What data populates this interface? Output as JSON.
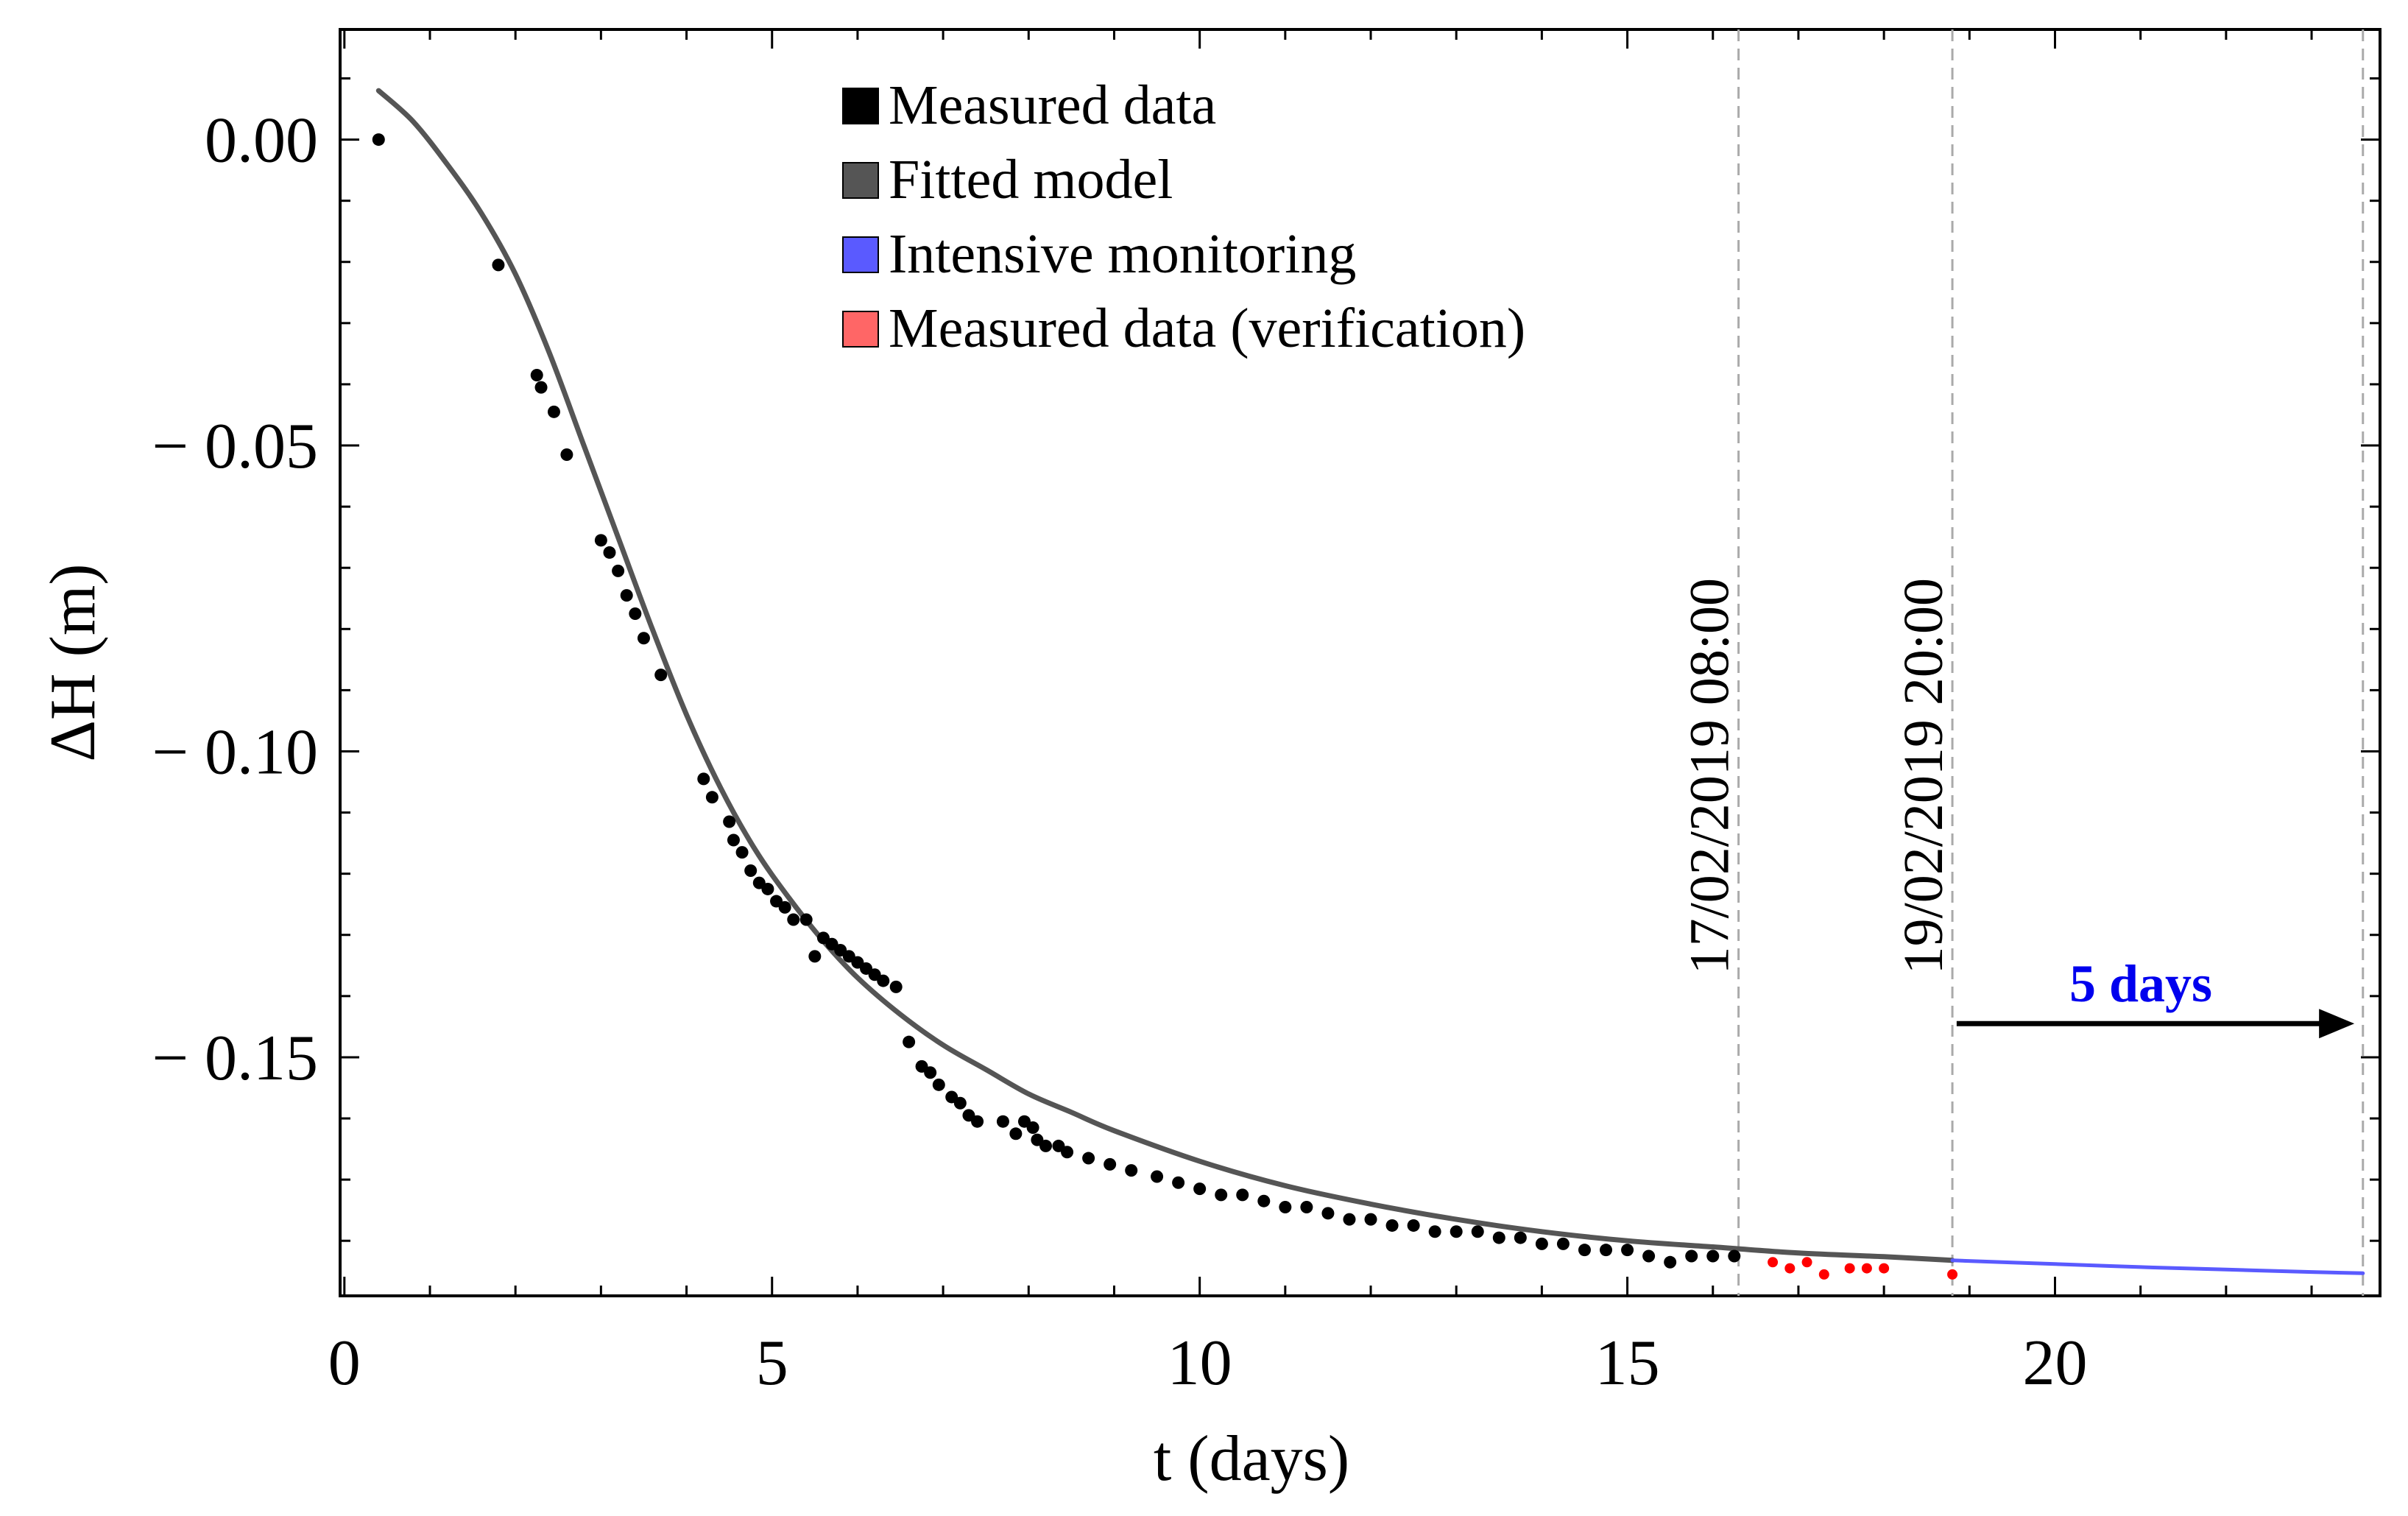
{
  "chart_data": {
    "type": "scatter",
    "xlabel": "t (days)",
    "ylabel": "ΔH (m)",
    "xlim": [
      -0.05,
      23.8
    ],
    "ylim": [
      -0.189,
      0.018
    ],
    "x_ticks": [
      0,
      5,
      10,
      15,
      20
    ],
    "x_tick_labels": [
      "0",
      "5",
      "10",
      "15",
      "20"
    ],
    "x_minor_step": 1,
    "y_ticks": [
      0.0,
      -0.05,
      -0.1,
      -0.15
    ],
    "y_tick_labels": [
      "0.00",
      "− 0.05",
      "− 0.10",
      "− 0.15"
    ],
    "y_minor_step": 0.01,
    "colors": {
      "measured": "#000000",
      "model": "#555555",
      "intensive": "#5a5aff",
      "verification": "#ff0000",
      "verification_legend": "#ff6666",
      "vline": "#aaaaaa",
      "arrow": "#000000",
      "arrow_label": "#0000ee"
    },
    "legend": [
      {
        "label": "Measured data",
        "color": "#000000"
      },
      {
        "label": "Fitted model",
        "color": "#555555"
      },
      {
        "label": "Intensive monitoring",
        "color": "#5a5aff"
      },
      {
        "label": "Measured data (verification)",
        "color": "#ff6666"
      }
    ],
    "vertical_lines": [
      {
        "x": 16.3,
        "label": "17/02/2019 08:00"
      },
      {
        "x": 18.8,
        "label": "19/02/2019 20:00"
      },
      {
        "x": 23.6,
        "label": ""
      }
    ],
    "arrow": {
      "x_start": 18.85,
      "x_end": 23.5,
      "y": -0.1445,
      "label": "5 days"
    },
    "series": [
      {
        "name": "Measured data",
        "kind": "scatter",
        "x": [
          0.4,
          1.8,
          2.25,
          2.3,
          2.45,
          2.6,
          3.0,
          3.1,
          3.2,
          3.3,
          3.4,
          3.5,
          3.7,
          4.2,
          4.3,
          4.5,
          4.55,
          4.65,
          4.75,
          4.85,
          4.95,
          5.05,
          5.15,
          5.25,
          5.4,
          5.5,
          5.6,
          5.7,
          5.8,
          5.9,
          6.0,
          6.1,
          6.2,
          6.3,
          6.45,
          6.6,
          6.75,
          6.85,
          6.95,
          7.1,
          7.2,
          7.3,
          7.4,
          7.7,
          7.85,
          7.95,
          8.05,
          8.1,
          8.2,
          8.35,
          8.45,
          8.7,
          8.95,
          9.2,
          9.5,
          9.75,
          10.0,
          10.25,
          10.5,
          10.75,
          11.0,
          11.25,
          11.5,
          11.75,
          12.0,
          12.25,
          12.5,
          12.75,
          13.0,
          13.25,
          13.5,
          13.75,
          14.0,
          14.25,
          14.5,
          14.75,
          15.0,
          15.25,
          15.5,
          15.75,
          16.0,
          16.25
        ],
        "y": [
          0.0,
          -0.0205,
          -0.0385,
          -0.0405,
          -0.0445,
          -0.0515,
          -0.0655,
          -0.0675,
          -0.0705,
          -0.0745,
          -0.0775,
          -0.0815,
          -0.0875,
          -0.1045,
          -0.1075,
          -0.1115,
          -0.1145,
          -0.1165,
          -0.1195,
          -0.1215,
          -0.1225,
          -0.1245,
          -0.1255,
          -0.1275,
          -0.1275,
          -0.1335,
          -0.1305,
          -0.1315,
          -0.1325,
          -0.1335,
          -0.1345,
          -0.1355,
          -0.1365,
          -0.1375,
          -0.1385,
          -0.1475,
          -0.1515,
          -0.1525,
          -0.1545,
          -0.1565,
          -0.1575,
          -0.1595,
          -0.1605,
          -0.1605,
          -0.1625,
          -0.1605,
          -0.1615,
          -0.1635,
          -0.1645,
          -0.1645,
          -0.1655,
          -0.1665,
          -0.1675,
          -0.1685,
          -0.1695,
          -0.1705,
          -0.1715,
          -0.1725,
          -0.1725,
          -0.1735,
          -0.1745,
          -0.1745,
          -0.1755,
          -0.1765,
          -0.1765,
          -0.1775,
          -0.1775,
          -0.1785,
          -0.1785,
          -0.1785,
          -0.1795,
          -0.1795,
          -0.1805,
          -0.1805,
          -0.1815,
          -0.1815,
          -0.1815,
          -0.1825,
          -0.1835,
          -0.1825,
          -0.1825,
          -0.1825
        ]
      },
      {
        "name": "Measured data (verification)",
        "kind": "scatter",
        "x": [
          16.7,
          16.9,
          17.1,
          17.3,
          17.6,
          17.8,
          18.0,
          18.8
        ],
        "y": [
          -0.1835,
          -0.1845,
          -0.1835,
          -0.1855,
          -0.1845,
          -0.1845,
          -0.1845,
          -0.1855
        ]
      },
      {
        "name": "Fitted model",
        "kind": "line",
        "x": [
          0.4,
          0.8,
          1.2,
          1.6,
          2.0,
          2.4,
          2.8,
          3.2,
          3.6,
          4.0,
          4.4,
          4.8,
          5.2,
          5.6,
          6.0,
          6.5,
          7.0,
          7.5,
          8.0,
          8.5,
          9.0,
          10.0,
          11.0,
          12.0,
          13.0,
          14.0,
          15.0,
          16.0,
          17.0,
          18.0,
          18.8
        ],
        "y": [
          0.008,
          0.003,
          -0.004,
          -0.012,
          -0.022,
          -0.035,
          -0.05,
          -0.065,
          -0.08,
          -0.094,
          -0.106,
          -0.116,
          -0.124,
          -0.131,
          -0.137,
          -0.143,
          -0.148,
          -0.152,
          -0.156,
          -0.159,
          -0.162,
          -0.167,
          -0.171,
          -0.174,
          -0.1765,
          -0.1785,
          -0.18,
          -0.181,
          -0.182,
          -0.1826,
          -0.1832
        ]
      },
      {
        "name": "Intensive monitoring",
        "kind": "line",
        "x": [
          18.8,
          20.0,
          21.0,
          22.0,
          23.0,
          23.6
        ],
        "y": [
          -0.1832,
          -0.1838,
          -0.1843,
          -0.1847,
          -0.1851,
          -0.1853
        ]
      }
    ]
  }
}
